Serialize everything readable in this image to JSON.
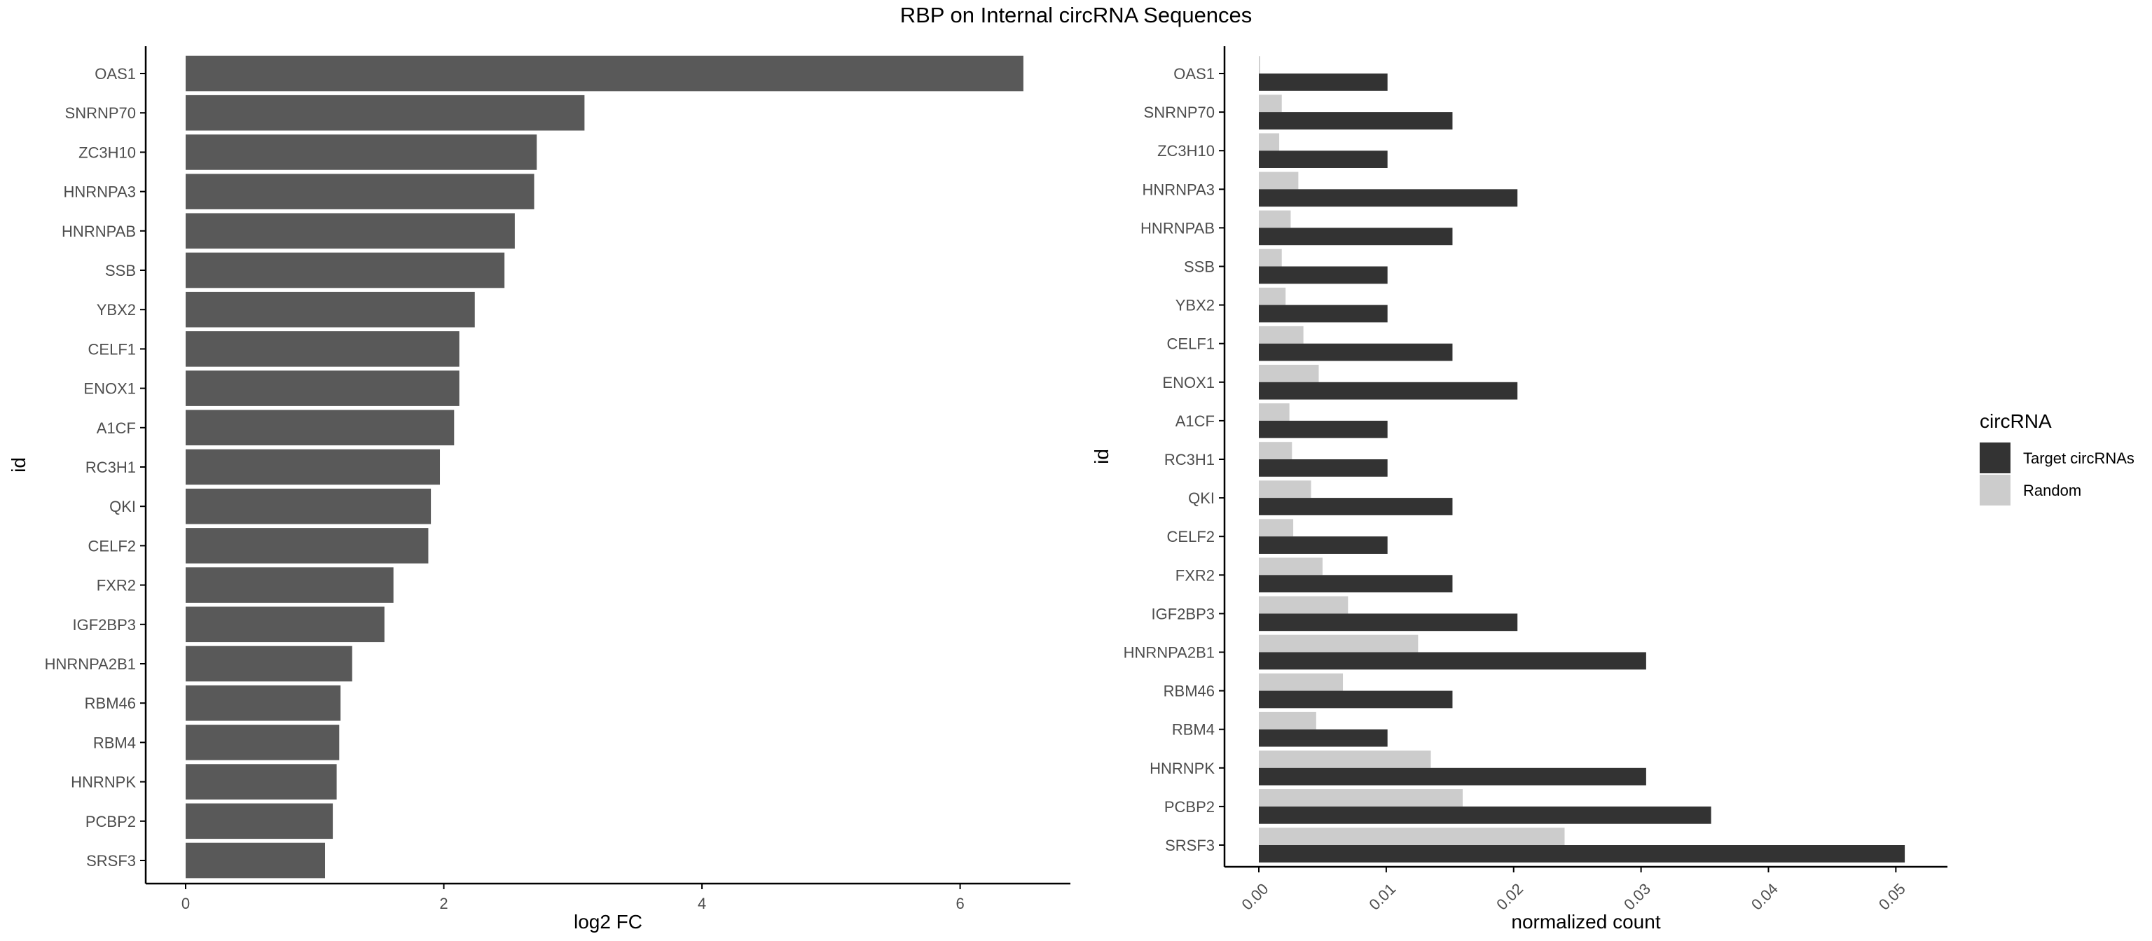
{
  "title": "RBP on Internal circRNA Sequences",
  "colors": {
    "left_bar": "#595959",
    "target": "#333333",
    "random": "#cccccc",
    "axis": "#000000",
    "tick_text": "#4d4d4d"
  },
  "chart_data": [
    {
      "type": "bar",
      "orientation": "horizontal",
      "xlabel": "log2 FC",
      "ylabel": "id",
      "xlim": [
        0,
        6.8
      ],
      "xticks": [
        0,
        2,
        4,
        6
      ],
      "xtick_labels": [
        "0",
        "2",
        "4",
        "6"
      ],
      "grid": false,
      "categories": [
        "OAS1",
        "SNRNP70",
        "ZC3H10",
        "HNRNPA3",
        "HNRNPAB",
        "SSB",
        "YBX2",
        "CELF1",
        "ENOX1",
        "A1CF",
        "RC3H1",
        "QKI",
        "CELF2",
        "FXR2",
        "IGF2BP3",
        "HNRNPA2B1",
        "RBM46",
        "RBM4",
        "HNRNPK",
        "PCBP2",
        "SRSF3"
      ],
      "values": [
        6.49,
        3.09,
        2.72,
        2.7,
        2.55,
        2.47,
        2.24,
        2.12,
        2.12,
        2.08,
        1.97,
        1.9,
        1.88,
        1.61,
        1.54,
        1.29,
        1.2,
        1.19,
        1.17,
        1.14,
        1.08
      ]
    },
    {
      "type": "bar",
      "orientation": "horizontal",
      "grouped": true,
      "xlabel": "normalized count",
      "ylabel": "id",
      "xlim": [
        0,
        0.0535
      ],
      "xticks": [
        0,
        0.01,
        0.02,
        0.03,
        0.04,
        0.05
      ],
      "xtick_labels": [
        "0.00",
        "0.01",
        "0.02",
        "0.03",
        "0.04",
        "0.05"
      ],
      "grid": false,
      "categories": [
        "OAS1",
        "SNRNP70",
        "ZC3H10",
        "HNRNPA3",
        "HNRNPAB",
        "SSB",
        "YBX2",
        "CELF1",
        "ENOX1",
        "A1CF",
        "RC3H1",
        "QKI",
        "CELF2",
        "FXR2",
        "IGF2BP3",
        "HNRNPA2B1",
        "RBM46",
        "RBM4",
        "HNRNPK",
        "PCBP2",
        "SRSF3"
      ],
      "legend": {
        "title": "circRNA",
        "position": "right"
      },
      "series": [
        {
          "name": "Target circRNAs",
          "values": [
            0.0101,
            0.0152,
            0.0101,
            0.0203,
            0.0152,
            0.0101,
            0.0101,
            0.0152,
            0.0203,
            0.0101,
            0.0101,
            0.0152,
            0.0101,
            0.0152,
            0.0203,
            0.0304,
            0.0152,
            0.0101,
            0.0304,
            0.0355,
            0.0507
          ]
        },
        {
          "name": "Random",
          "values": [
            0.0001,
            0.0018,
            0.0016,
            0.0031,
            0.0025,
            0.0018,
            0.0021,
            0.0035,
            0.0047,
            0.0024,
            0.0026,
            0.0041,
            0.0027,
            0.005,
            0.007,
            0.0125,
            0.0066,
            0.0045,
            0.0135,
            0.016,
            0.024
          ]
        }
      ]
    }
  ]
}
